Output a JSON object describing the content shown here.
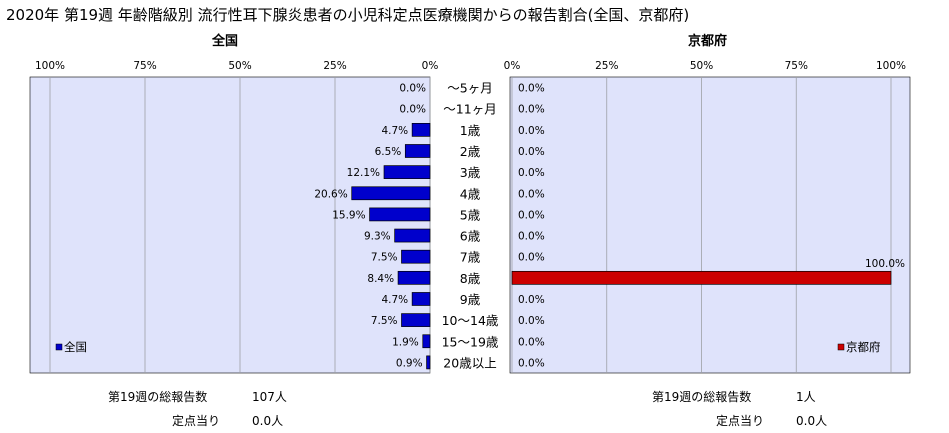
{
  "title": "2020年 第19週 年齢階級別 流行性耳下腺炎患者の小児科定点医療機関からの報告割合(全国、京都府)",
  "chart_data": [
    {
      "type": "bar",
      "orientation": "horizontal-reversed",
      "title": "全国",
      "categories": [
        "～5ヶ月",
        "～11ヶ月",
        "1歳",
        "2歳",
        "3歳",
        "4歳",
        "5歳",
        "6歳",
        "7歳",
        "8歳",
        "9歳",
        "10～14歳",
        "15～19歳",
        "20歳以上"
      ],
      "series": [
        {
          "name": "全国",
          "color": "#0000cc",
          "values": [
            0.0,
            0.0,
            4.7,
            6.5,
            12.1,
            20.6,
            15.9,
            9.3,
            7.5,
            8.4,
            4.7,
            7.5,
            1.9,
            0.9
          ],
          "labels": [
            "0.0%",
            "0.0%",
            "4.7%",
            "6.5%",
            "12.1%",
            "20.6%",
            "15.9%",
            "9.3%",
            "7.5%",
            "8.4%",
            "4.7%",
            "7.5%",
            "1.9%",
            "0.9%"
          ]
        }
      ],
      "xlim": [
        0,
        100
      ],
      "ticks": [
        "100%",
        "75%",
        "50%",
        "25%",
        "0%"
      ],
      "grid": true,
      "legend_position": "bottom-left"
    },
    {
      "type": "bar",
      "orientation": "horizontal",
      "title": "京都府",
      "categories": [
        "～5ヶ月",
        "～11ヶ月",
        "1歳",
        "2歳",
        "3歳",
        "4歳",
        "5歳",
        "6歳",
        "7歳",
        "8歳",
        "9歳",
        "10～14歳",
        "15～19歳",
        "20歳以上"
      ],
      "series": [
        {
          "name": "京都府",
          "color": "#cc0000",
          "values": [
            0.0,
            0.0,
            0.0,
            0.0,
            0.0,
            0.0,
            0.0,
            0.0,
            0.0,
            100.0,
            0.0,
            0.0,
            0.0,
            0.0
          ],
          "labels": [
            "0.0%",
            "0.0%",
            "0.0%",
            "0.0%",
            "0.0%",
            "0.0%",
            "0.0%",
            "0.0%",
            "0.0%",
            "100.0%",
            "0.0%",
            "0.0%",
            "0.0%",
            "0.0%"
          ]
        }
      ],
      "xlim": [
        0,
        100
      ],
      "ticks": [
        "0%",
        "25%",
        "50%",
        "75%",
        "100%"
      ],
      "grid": true,
      "legend_position": "bottom-right"
    }
  ],
  "footer": {
    "left": {
      "total_label": "第19週の総報告数",
      "total_value": "107人",
      "per_label": "定点当り",
      "per_value": "0.0人"
    },
    "right": {
      "total_label": "第19週の総報告数",
      "total_value": "1人",
      "per_label": "定点当り",
      "per_value": "0.0人"
    }
  }
}
